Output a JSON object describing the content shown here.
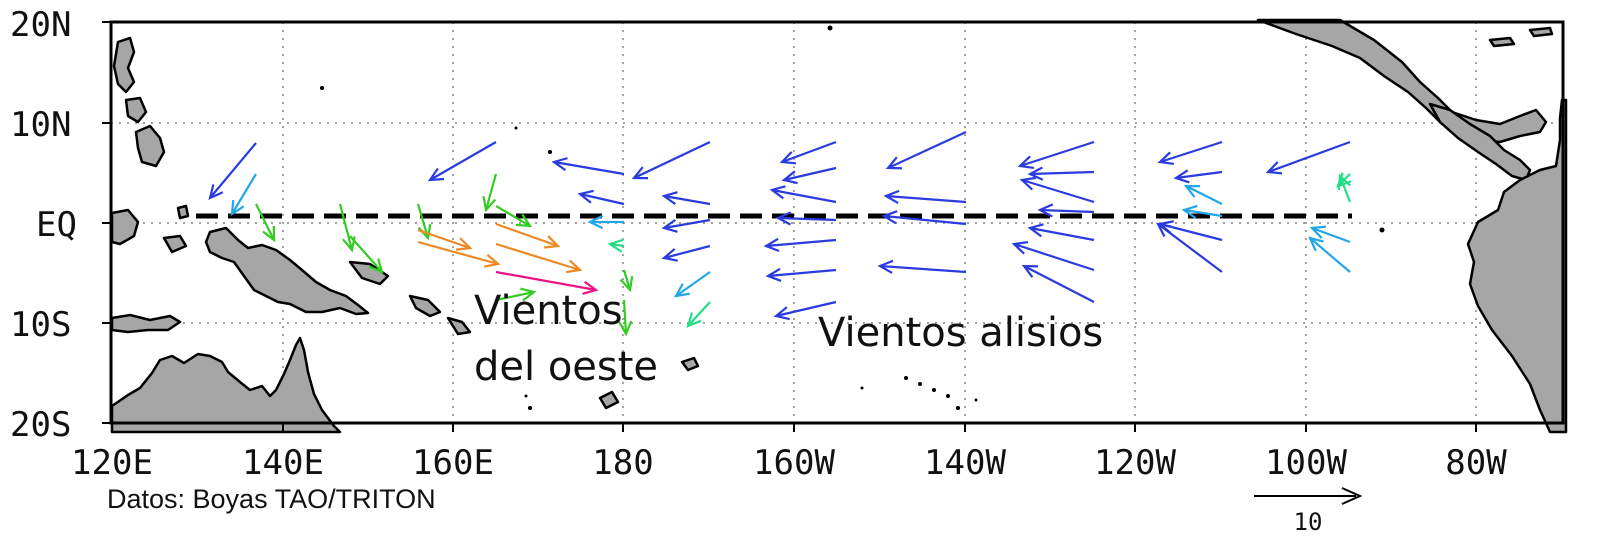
{
  "map": {
    "lon_ticks": [
      "120E",
      "140E",
      "160E",
      "180",
      "160W",
      "140W",
      "120W",
      "100W",
      "80W"
    ],
    "lat_ticks": [
      "20N",
      "10N",
      "EQ",
      "10S",
      "20S"
    ],
    "land_color": "#a6a6a6",
    "equator_line": "dashed"
  },
  "annotations": {
    "westerlies_line1": "Vientos",
    "westerlies_line2": "del oeste",
    "trades": "Vientos alisios"
  },
  "source": "Datos: Boyas TAO/TRITON",
  "reference_vector": {
    "label": "10",
    "magnitude": 10
  },
  "wind_colors": {
    "strong_east": "#2a3be0",
    "east": "#22a6e8",
    "weak": "#22dd88",
    "west_weak": "#33cc22",
    "west": "#ee8822",
    "west_strong": "#ee1188"
  }
}
